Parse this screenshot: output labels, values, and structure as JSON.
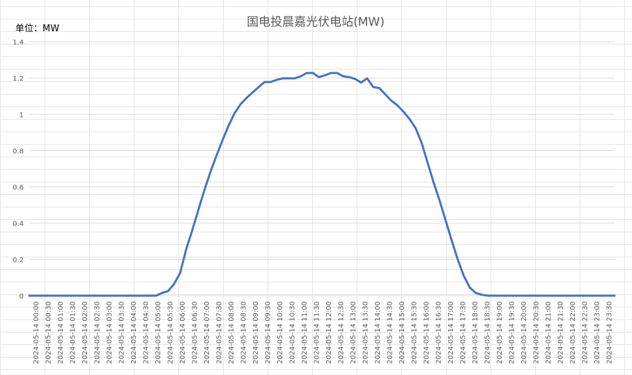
{
  "chart_data": {
    "type": "line",
    "title": "国电投晨嘉光伏电站(MW)",
    "unit_label": "单位：MW",
    "xlabel": "",
    "ylabel": "",
    "ylim": [
      0,
      1.4
    ],
    "yticks": [
      "0",
      "0.2",
      "0.4",
      "0.6",
      "0.8",
      "1",
      "1.2",
      "1.4"
    ],
    "grid": true,
    "legend": "none",
    "line_color": "#4472c4",
    "x_labels": [
      "2024-05-14 00:00",
      "2024-05-14 00:30",
      "2024-05-14 01:00",
      "2024-05-14 01:30",
      "2024-05-14 02:00",
      "2024-05-14 02:30",
      "2024-05-14 03:00",
      "2024-05-14 03:30",
      "2024-05-14 04:00",
      "2024-05-14 04:30",
      "2024-05-14 05:00",
      "2024-05-14 05:30",
      "2024-05-14 06:00",
      "2024-05-14 06:30",
      "2024-05-14 07:00",
      "2024-05-14 07:30",
      "2024-05-14 08:00",
      "2024-05-14 08:30",
      "2024-05-14 09:00",
      "2024-05-14 09:30",
      "2024-05-14 10:00",
      "2024-05-14 10:30",
      "2024-05-14 11:00",
      "2024-05-14 11:30",
      "2024-05-14 12:00",
      "2024-05-14 12:30",
      "2024-05-14 13:00",
      "2024-05-14 13:30",
      "2024-05-14 14:00",
      "2024-05-14 14:30",
      "2024-05-14 15:00",
      "2024-05-14 15:30",
      "2024-05-14 16:00",
      "2024-05-14 16:30",
      "2024-05-14 17:00",
      "2024-05-14 17:30",
      "2024-05-14 18:00",
      "2024-05-14 18:30",
      "2024-05-14 19:00",
      "2024-05-14 19:30",
      "2024-05-14 20:00",
      "2024-05-14 20:30",
      "2024-05-14 21:00",
      "2024-05-14 21:30",
      "2024-05-14 22:00",
      "2024-05-14 22:30",
      "2024-05-14 23:00",
      "2024-05-14 23:30"
    ],
    "series": [
      {
        "values": [
          0,
          0,
          0,
          0,
          0,
          0,
          0,
          0,
          0,
          0,
          0,
          0,
          0,
          0,
          0,
          0,
          0,
          0,
          0,
          0,
          0,
          0,
          0.015,
          0.025,
          0.065,
          0.125,
          0.255,
          0.36,
          0.47,
          0.58,
          0.68,
          0.77,
          0.855,
          0.935,
          1.005,
          1.055,
          1.09,
          1.12,
          1.15,
          1.178,
          1.178,
          1.19,
          1.198,
          1.198,
          1.198,
          1.21,
          1.228,
          1.228,
          1.205,
          1.215,
          1.228,
          1.228,
          1.21,
          1.205,
          1.195,
          1.175,
          1.198,
          1.15,
          1.145,
          1.11,
          1.075,
          1.05,
          1.015,
          0.975,
          0.925,
          0.845,
          0.735,
          0.625,
          0.525,
          0.415,
          0.305,
          0.2,
          0.11,
          0.045,
          0.015,
          0.005,
          0,
          0,
          0,
          0,
          0,
          0,
          0,
          0,
          0,
          0,
          0,
          0,
          0,
          0,
          0,
          0,
          0,
          0,
          0,
          0,
          0,
          0
        ]
      }
    ]
  }
}
